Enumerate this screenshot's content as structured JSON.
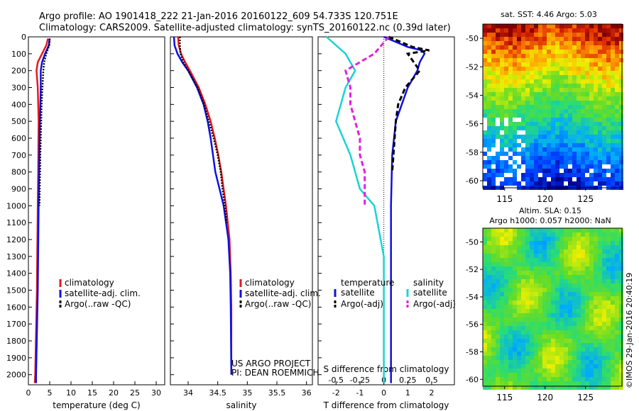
{
  "header": {
    "line1": "Argo profile: AO 1901418_222 21-Jan-2016 20160122_609 54.733S 120.751E",
    "line2": "Climatology: CARS2009. Satellite-adjusted climatology: synTS_20160122.nc (0.39d later)"
  },
  "colors": {
    "climatology": "#e41a1c",
    "satellite": "#1010e0",
    "argo": "#000000",
    "salinity_sat": "#19d4d4",
    "salinity_argo": "#e020e0"
  },
  "chart_data": [
    {
      "type": "line",
      "panel": "temperature",
      "xlabel": "temperature (deg C)",
      "ylabel": "",
      "xlim": [
        0,
        32
      ],
      "ylim": [
        2060,
        0
      ],
      "x_ticks": [
        "0",
        "5",
        "10",
        "15",
        "20",
        "25",
        "30"
      ],
      "y_ticks": [
        "0",
        "100",
        "200",
        "300",
        "400",
        "500",
        "600",
        "700",
        "800",
        "900",
        "1000",
        "1100",
        "1200",
        "1300",
        "1400",
        "1500",
        "1600",
        "1700",
        "1800",
        "1900",
        "2000"
      ],
      "legend": [
        "climatology",
        "satellite-adj. clim.",
        "Argo(..raw -QC)"
      ],
      "series": [
        {
          "name": "climatology",
          "depth": [
            10,
            50,
            100,
            150,
            200,
            300,
            500,
            800,
            1000,
            1500,
            2000,
            2050
          ],
          "values": [
            4.6,
            4.2,
            3.2,
            2.2,
            1.9,
            2.2,
            2.4,
            2.3,
            2.2,
            2.0,
            1.6,
            1.5
          ]
        },
        {
          "name": "satellite-adj. clim.",
          "depth": [
            10,
            50,
            100,
            150,
            200,
            300,
            500,
            800,
            1000,
            1500,
            2000,
            2050
          ],
          "values": [
            5.0,
            4.8,
            3.9,
            3.2,
            2.9,
            2.9,
            2.7,
            2.5,
            2.4,
            2.2,
            1.8,
            1.8
          ]
        },
        {
          "name": "Argo(..raw -QC)",
          "depth": [
            10,
            50,
            100,
            150,
            200,
            250,
            300,
            400,
            500,
            700,
            1000
          ],
          "values": [
            5.0,
            4.9,
            4.2,
            3.7,
            3.5,
            3.4,
            3.3,
            3.1,
            3.0,
            2.8,
            2.6
          ]
        }
      ]
    },
    {
      "type": "line",
      "panel": "salinity",
      "xlabel": "salinity",
      "xlim": [
        33.7,
        36.1
      ],
      "ylim": [
        2060,
        0
      ],
      "x_ticks": [
        "34",
        "34.5",
        "35",
        "35.5",
        "36"
      ],
      "legend": [
        "climatology",
        "satellite-adj. clim.",
        "Argo(..raw -QC)"
      ],
      "annotation": [
        "US ARGO PROJECT",
        "PI: DEAN ROEMMICH"
      ],
      "series": [
        {
          "name": "climatology",
          "depth": [
            0,
            50,
            100,
            150,
            200,
            300,
            400,
            500,
            600,
            700,
            800,
            900,
            1000,
            1200,
            1400,
            1600,
            2000
          ],
          "values": [
            33.83,
            33.84,
            33.88,
            33.95,
            34.03,
            34.18,
            34.29,
            34.38,
            34.45,
            34.51,
            34.56,
            34.6,
            34.64,
            34.7,
            34.72,
            34.73,
            34.73
          ]
        },
        {
          "name": "satellite-adj. clim.",
          "depth": [
            0,
            50,
            100,
            150,
            200,
            300,
            400,
            500,
            600,
            700,
            800,
            900,
            1000,
            1200,
            1400,
            1600,
            2000
          ],
          "values": [
            33.76,
            33.77,
            33.82,
            33.9,
            34.0,
            34.15,
            34.26,
            34.33,
            34.38,
            34.42,
            34.46,
            34.53,
            34.6,
            34.68,
            34.71,
            34.72,
            34.73
          ]
        },
        {
          "name": "Argo(..raw -QC)",
          "depth": [
            0,
            50,
            100,
            150,
            200,
            300,
            400,
            500,
            600,
            700,
            800,
            900,
            1000,
            1100
          ],
          "values": [
            33.86,
            33.86,
            33.87,
            33.92,
            34.0,
            34.16,
            34.27,
            34.35,
            34.43,
            34.5,
            34.55,
            34.58,
            34.62,
            34.65
          ]
        }
      ]
    },
    {
      "type": "line",
      "panel": "difference",
      "xlabel": "T difference from climatology",
      "xlabel_top": "S difference from climatology",
      "xlim": [
        -2.75,
        2.95
      ],
      "ylim": [
        2060,
        0
      ],
      "x_ticks": [
        "-2",
        "-1",
        "0",
        "1",
        "2"
      ],
      "x_ticks_top": [
        "-0.5",
        "-0.25",
        "0",
        "0.25",
        "0.5"
      ],
      "legend_groups": [
        "temperature",
        "salinity"
      ],
      "legend": [
        "satellite",
        "Argo(-adj)",
        "satellite",
        "Argo(-adj)"
      ],
      "series": [
        {
          "name": "satellite",
          "group": "temperature",
          "depth": [
            0,
            60,
            80,
            100,
            150,
            200,
            300,
            500,
            700,
            1000,
            1500,
            2050
          ],
          "values": [
            0.0,
            1.0,
            1.6,
            1.7,
            1.5,
            1.4,
            1.0,
            0.5,
            0.35,
            0.3,
            0.3,
            0.3
          ]
        },
        {
          "name": "Argo(-adj)",
          "group": "temperature",
          "depth": [
            0,
            60,
            80,
            100,
            200,
            300,
            400,
            500,
            700,
            800
          ],
          "values": [
            0.2,
            1.2,
            1.9,
            1.0,
            1.5,
            0.9,
            0.6,
            0.5,
            0.4,
            0.35
          ]
        },
        {
          "name": "satellite",
          "group": "salinity",
          "depth": [
            0,
            100,
            200,
            300,
            500,
            700,
            900,
            1000,
            1300,
            1500,
            2050
          ],
          "values": [
            -0.6,
            -0.4,
            -0.3,
            -0.4,
            -0.5,
            -0.35,
            -0.25,
            -0.1,
            0.0,
            0.0,
            0.0
          ]
        },
        {
          "name": "Argo(-adj)",
          "group": "salinity",
          "depth": [
            0,
            100,
            200,
            300,
            400,
            500,
            600,
            700,
            800,
            1000
          ],
          "values": [
            0.05,
            -0.1,
            -0.4,
            -0.35,
            -0.35,
            -0.3,
            -0.25,
            -0.25,
            -0.2,
            -0.2
          ]
        }
      ]
    }
  ],
  "maps": [
    {
      "title": "sat. SST: 4.46 Argo: 5.03",
      "x_ticks": [
        "115",
        "120",
        "125"
      ],
      "y_ticks": [
        "-50",
        "-52",
        "-54",
        "-56",
        "-58",
        "-60"
      ],
      "colormap": "sst"
    },
    {
      "title_line1": "Altim. SLA: 0.15",
      "title_line2": "Argo h1000: 0.057 h2000: NaN",
      "x_ticks": [
        "115",
        "120",
        "125"
      ],
      "y_ticks": [
        "-50",
        "-52",
        "-54",
        "-56",
        "-58",
        "-60"
      ],
      "stamp": "©IMOS 29-Jan-2016 20:40:19",
      "colormap": "sla"
    }
  ]
}
